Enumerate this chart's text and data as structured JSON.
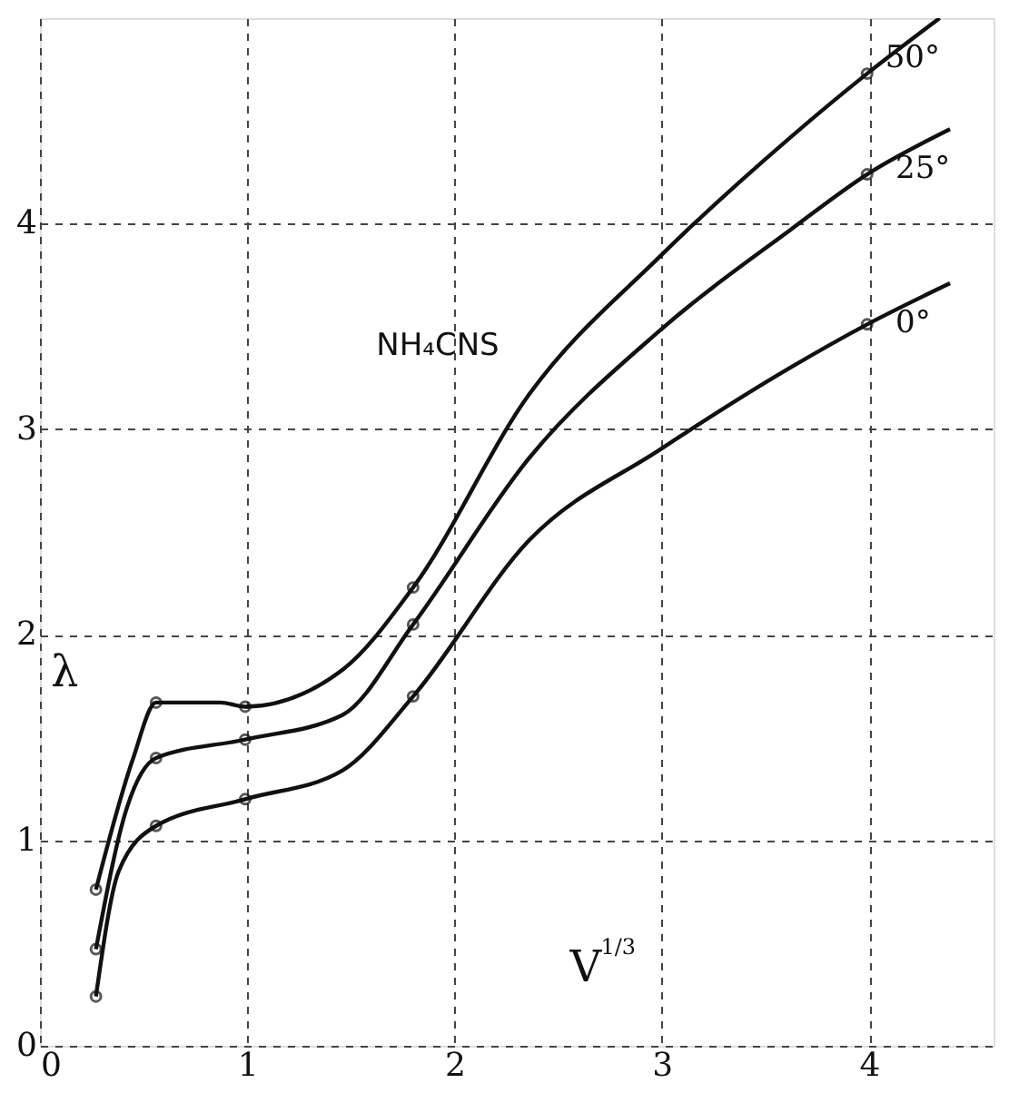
{
  "chart_data": {
    "type": "line",
    "xlabel": "V$^{1/3}$",
    "ylabel": "λ",
    "annotations": [
      "NH₄CNS"
    ],
    "xlim": [
      0,
      4.6
    ],
    "ylim": [
      0,
      5
    ],
    "xticks": [
      0,
      1,
      2,
      3,
      4
    ],
    "yticks": [
      0,
      1,
      2,
      3,
      4
    ],
    "grid": true,
    "line_style": "solid",
    "series": [
      {
        "name": "50°",
        "color": "#111111",
        "x": [
          0.27,
          0.45,
          0.56,
          0.87,
          0.99,
          1.46,
          1.8,
          2.36,
          2.99,
          3.62,
          3.99,
          4.34
        ],
        "values": [
          0.76,
          1.4,
          1.67,
          1.67,
          1.65,
          1.83,
          2.23,
          3.17,
          3.84,
          4.42,
          4.73,
          5.0
        ]
      },
      {
        "name": "25°",
        "color": "#111111",
        "x": [
          0.27,
          0.42,
          0.56,
          0.99,
          1.46,
          1.8,
          2.36,
          2.99,
          3.62,
          3.99,
          4.39
        ],
        "values": [
          0.47,
          1.16,
          1.4,
          1.49,
          1.61,
          2.05,
          2.86,
          3.48,
          3.97,
          4.24,
          4.46
        ]
      },
      {
        "name": "0°",
        "color": "#111111",
        "x": [
          0.27,
          0.38,
          0.56,
          0.99,
          1.46,
          1.8,
          2.36,
          2.99,
          3.62,
          3.99,
          4.39
        ],
        "values": [
          0.24,
          0.85,
          1.07,
          1.2,
          1.34,
          1.7,
          2.46,
          2.9,
          3.3,
          3.51,
          3.71
        ]
      },
      {
        "type": "scatter",
        "marker": "circle",
        "color": "#111111",
        "x": [
          0.27,
          0.56,
          0.99,
          1.8,
          3.99
        ],
        "values": [
          0.76,
          1.67,
          1.65,
          2.23,
          4.73
        ]
      },
      {
        "type": "scatter",
        "marker": "circle",
        "color": "#111111",
        "x": [
          0.27,
          0.56,
          0.99,
          1.8,
          3.99
        ],
        "values": [
          0.47,
          1.4,
          1.49,
          2.05,
          4.24
        ]
      },
      {
        "type": "scatter",
        "marker": "circle",
        "color": "#111111",
        "x": [
          0.27,
          0.56,
          0.99,
          1.8,
          3.99
        ],
        "values": [
          0.24,
          1.07,
          1.2,
          1.7,
          3.51
        ]
      }
    ]
  }
}
